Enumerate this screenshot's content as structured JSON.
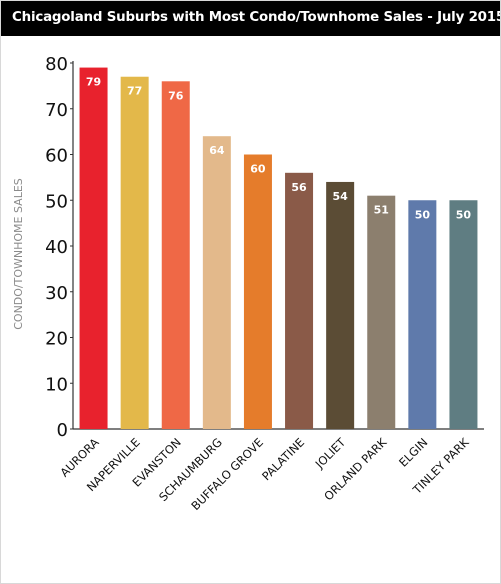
{
  "chart_data": {
    "type": "bar",
    "title": "Chicagoland Suburbs with Most Condo/Townhome Sales - July 2015",
    "xlabel": "",
    "ylabel": "CONDO/TOWNHOME SALES",
    "ylim": [
      0,
      80
    ],
    "yticks": [
      "0",
      "10",
      "20",
      "30",
      "40",
      "50",
      "60",
      "70",
      "80"
    ],
    "grid": false,
    "categories": [
      "AURORA",
      "NAPERVILLE",
      "EVANSTON",
      "SCHAUMBURG",
      "BUFFALO GROVE",
      "PALATINE",
      "JOLIET",
      "ORLAND PARK",
      "ELGIN",
      "TINLEY PARK"
    ],
    "values": [
      79,
      77,
      76,
      64,
      60,
      56,
      54,
      51,
      50,
      50
    ],
    "data_labels": [
      "79",
      "77",
      "76",
      "64",
      "60",
      "56",
      "54",
      "51",
      "50",
      "50"
    ],
    "colors": [
      "#e8222d",
      "#e3b84a",
      "#ef6846",
      "#e3b98b",
      "#e57c2b",
      "#8a5a48",
      "#5b4c35",
      "#8c7f6e",
      "#5f7aab",
      "#5f7d82"
    ]
  }
}
